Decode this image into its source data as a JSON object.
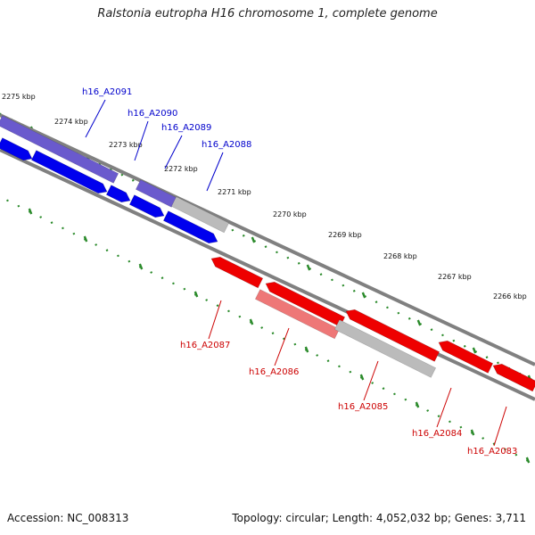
{
  "title": "Ralstonia eutropha H16 chromosome 1, complete genome",
  "footer": {
    "accession": "Accession: NC_008313",
    "summary": "Topology: circular; Length: 4,052,032 bp; Genes: 3,711"
  },
  "kbp_labels": [
    "2275 kbp",
    "2274 kbp",
    "2273 kbp",
    "2272 kbp",
    "2271 kbp",
    "2270 kbp",
    "2269 kbp",
    "2268 kbp",
    "2267 kbp",
    "2266 kbp"
  ],
  "gene_labels_top": [
    "h16_A2091",
    "h16_A2090",
    "h16_A2089",
    "h16_A2088"
  ],
  "gene_labels_bottom": [
    "h16_A2087",
    "h16_A2086",
    "h16_A2085",
    "h16_A2084",
    "h16_A2083"
  ],
  "colors": {
    "blue": "#0000ee",
    "blue_light": "#6a5acd",
    "red": "#ee0000",
    "red_light": "#ee7777",
    "grey": "#bbbbbb",
    "backbone": "#808080",
    "tick": "#2a8a2a",
    "label_blue": "#0000cc",
    "label_red": "#cc0000"
  }
}
